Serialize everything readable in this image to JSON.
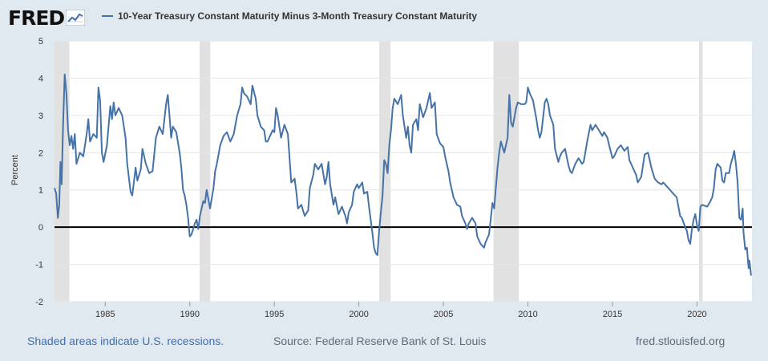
{
  "header": {
    "logo_text": "FRED",
    "logo_icon": "line-graph-icon"
  },
  "legend": {
    "label": "10-Year Treasury Constant Maturity Minus 3-Month Treasury Constant Maturity",
    "color": "#4572a7"
  },
  "footer": {
    "recession_note": "Shaded areas indicate U.S. recessions.",
    "source": "Source: Federal Reserve Bank of St. Louis",
    "site": "fred.stlouisfed.org"
  },
  "colors": {
    "background": "#e1e9f0",
    "plot_background": "#ffffff",
    "recession_shade": "#e1e1e1",
    "zero_line": "#000000",
    "series": "#4572a7",
    "grid": "#e6e6e6"
  },
  "chart_data": {
    "type": "line",
    "title": "",
    "xlabel": "",
    "ylabel": "Percent",
    "xlim": [
      1982.0,
      2023.25
    ],
    "ylim": [
      -2,
      5
    ],
    "y_ticks": [
      "-2",
      "-1",
      "0",
      "1",
      "2",
      "3",
      "4",
      "5"
    ],
    "x_ticks": [
      "1985",
      "1990",
      "1995",
      "2000",
      "2005",
      "2010",
      "2015",
      "2020"
    ],
    "grid": "horizontal",
    "reference_line": 0,
    "recessions": [
      [
        1981.58,
        1982.88
      ],
      [
        1990.58,
        1991.21
      ],
      [
        2001.21,
        2001.88
      ],
      [
        2007.96,
        2009.46
      ],
      [
        2020.12,
        2020.33
      ]
    ],
    "series": [
      {
        "name": "10-Year Treasury Constant Maturity Minus 3-Month Treasury Constant Maturity",
        "color": "#4572a7",
        "points": [
          [
            1982.0,
            1.05
          ],
          [
            1982.1,
            0.9
          ],
          [
            1982.2,
            0.25
          ],
          [
            1982.28,
            0.6
          ],
          [
            1982.35,
            1.75
          ],
          [
            1982.42,
            1.15
          ],
          [
            1982.5,
            2.6
          ],
          [
            1982.6,
            4.1
          ],
          [
            1982.7,
            3.6
          ],
          [
            1982.8,
            2.6
          ],
          [
            1982.9,
            2.2
          ],
          [
            1983.0,
            2.45
          ],
          [
            1983.1,
            2.1
          ],
          [
            1983.2,
            2.5
          ],
          [
            1983.3,
            1.7
          ],
          [
            1983.5,
            2.0
          ],
          [
            1983.7,
            1.9
          ],
          [
            1983.9,
            2.5
          ],
          [
            1984.0,
            2.9
          ],
          [
            1984.1,
            2.3
          ],
          [
            1984.3,
            2.5
          ],
          [
            1984.5,
            2.4
          ],
          [
            1984.6,
            3.75
          ],
          [
            1984.7,
            3.4
          ],
          [
            1984.8,
            2.0
          ],
          [
            1984.9,
            1.75
          ],
          [
            1985.1,
            2.2
          ],
          [
            1985.3,
            3.25
          ],
          [
            1985.4,
            2.9
          ],
          [
            1985.5,
            3.35
          ],
          [
            1985.6,
            3.0
          ],
          [
            1985.8,
            3.2
          ],
          [
            1986.0,
            3.0
          ],
          [
            1986.2,
            2.4
          ],
          [
            1986.3,
            1.7
          ],
          [
            1986.5,
            0.95
          ],
          [
            1986.6,
            0.85
          ],
          [
            1986.8,
            1.6
          ],
          [
            1986.9,
            1.25
          ],
          [
            1987.1,
            1.55
          ],
          [
            1987.2,
            2.1
          ],
          [
            1987.4,
            1.7
          ],
          [
            1987.6,
            1.45
          ],
          [
            1987.8,
            1.5
          ],
          [
            1988.0,
            2.4
          ],
          [
            1988.2,
            2.7
          ],
          [
            1988.4,
            2.5
          ],
          [
            1988.6,
            3.3
          ],
          [
            1988.7,
            3.55
          ],
          [
            1988.8,
            3.0
          ],
          [
            1988.9,
            2.4
          ],
          [
            1989.0,
            2.7
          ],
          [
            1989.2,
            2.55
          ],
          [
            1989.4,
            2.0
          ],
          [
            1989.5,
            1.6
          ],
          [
            1989.6,
            1.0
          ],
          [
            1989.7,
            0.85
          ],
          [
            1989.8,
            0.6
          ],
          [
            1989.9,
            0.25
          ],
          [
            1990.0,
            -0.25
          ],
          [
            1990.1,
            -0.2
          ],
          [
            1990.3,
            0.1
          ],
          [
            1990.4,
            0.2
          ],
          [
            1990.5,
            -0.05
          ],
          [
            1990.6,
            0.3
          ],
          [
            1990.8,
            0.7
          ],
          [
            1990.9,
            0.65
          ],
          [
            1991.0,
            1.0
          ],
          [
            1991.2,
            0.5
          ],
          [
            1991.4,
            1.05
          ],
          [
            1991.5,
            1.5
          ],
          [
            1991.6,
            1.7
          ],
          [
            1991.8,
            2.2
          ],
          [
            1992.0,
            2.45
          ],
          [
            1992.2,
            2.55
          ],
          [
            1992.4,
            2.3
          ],
          [
            1992.6,
            2.5
          ],
          [
            1992.8,
            3.0
          ],
          [
            1993.0,
            3.3
          ],
          [
            1993.1,
            3.75
          ],
          [
            1993.2,
            3.6
          ],
          [
            1993.4,
            3.5
          ],
          [
            1993.6,
            3.3
          ],
          [
            1993.7,
            3.8
          ],
          [
            1993.9,
            3.45
          ],
          [
            1994.0,
            3.0
          ],
          [
            1994.2,
            2.7
          ],
          [
            1994.4,
            2.6
          ],
          [
            1994.5,
            2.3
          ],
          [
            1994.6,
            2.3
          ],
          [
            1994.8,
            2.5
          ],
          [
            1994.9,
            2.6
          ],
          [
            1995.0,
            2.55
          ],
          [
            1995.1,
            3.2
          ],
          [
            1995.2,
            3.0
          ],
          [
            1995.4,
            2.4
          ],
          [
            1995.6,
            2.75
          ],
          [
            1995.8,
            2.5
          ],
          [
            1996.0,
            1.2
          ],
          [
            1996.2,
            1.3
          ],
          [
            1996.3,
            0.95
          ],
          [
            1996.4,
            0.5
          ],
          [
            1996.6,
            0.6
          ],
          [
            1996.8,
            0.3
          ],
          [
            1997.0,
            0.45
          ],
          [
            1997.1,
            1.05
          ],
          [
            1997.3,
            1.4
          ],
          [
            1997.4,
            1.7
          ],
          [
            1997.6,
            1.55
          ],
          [
            1997.8,
            1.7
          ],
          [
            1998.0,
            1.15
          ],
          [
            1998.1,
            1.35
          ],
          [
            1998.2,
            1.75
          ],
          [
            1998.3,
            1.15
          ],
          [
            1998.5,
            0.6
          ],
          [
            1998.6,
            0.8
          ],
          [
            1998.8,
            0.35
          ],
          [
            1999.0,
            0.55
          ],
          [
            1999.2,
            0.3
          ],
          [
            1999.3,
            0.1
          ],
          [
            1999.4,
            0.4
          ],
          [
            1999.6,
            0.6
          ],
          [
            1999.7,
            0.95
          ],
          [
            1999.9,
            1.15
          ],
          [
            2000.0,
            1.05
          ],
          [
            2000.2,
            1.2
          ],
          [
            2000.3,
            0.9
          ],
          [
            2000.5,
            0.95
          ],
          [
            2000.6,
            0.55
          ],
          [
            2000.8,
            -0.15
          ],
          [
            2000.9,
            -0.55
          ],
          [
            2001.0,
            -0.7
          ],
          [
            2001.1,
            -0.75
          ],
          [
            2001.2,
            -0.1
          ],
          [
            2001.3,
            0.4
          ],
          [
            2001.4,
            0.85
          ],
          [
            2001.5,
            1.8
          ],
          [
            2001.6,
            1.7
          ],
          [
            2001.7,
            1.45
          ],
          [
            2001.8,
            2.2
          ],
          [
            2001.9,
            2.6
          ],
          [
            2002.0,
            3.2
          ],
          [
            2002.1,
            3.45
          ],
          [
            2002.3,
            3.3
          ],
          [
            2002.5,
            3.55
          ],
          [
            2002.6,
            3.0
          ],
          [
            2002.8,
            2.4
          ],
          [
            2002.9,
            2.7
          ],
          [
            2003.0,
            2.2
          ],
          [
            2003.1,
            2.0
          ],
          [
            2003.2,
            2.75
          ],
          [
            2003.4,
            2.9
          ],
          [
            2003.5,
            2.6
          ],
          [
            2003.6,
            3.3
          ],
          [
            2003.8,
            2.95
          ],
          [
            2004.0,
            3.2
          ],
          [
            2004.2,
            3.6
          ],
          [
            2004.3,
            3.2
          ],
          [
            2004.5,
            3.35
          ],
          [
            2004.6,
            2.5
          ],
          [
            2004.8,
            2.25
          ],
          [
            2005.0,
            2.15
          ],
          [
            2005.1,
            1.9
          ],
          [
            2005.3,
            1.5
          ],
          [
            2005.4,
            1.2
          ],
          [
            2005.6,
            0.8
          ],
          [
            2005.8,
            0.6
          ],
          [
            2006.0,
            0.55
          ],
          [
            2006.1,
            0.3
          ],
          [
            2006.3,
            0.1
          ],
          [
            2006.4,
            -0.05
          ],
          [
            2006.5,
            0.1
          ],
          [
            2006.7,
            0.25
          ],
          [
            2006.9,
            0.1
          ],
          [
            2007.0,
            -0.25
          ],
          [
            2007.2,
            -0.45
          ],
          [
            2007.4,
            -0.55
          ],
          [
            2007.5,
            -0.4
          ],
          [
            2007.7,
            -0.2
          ],
          [
            2007.8,
            0.2
          ],
          [
            2007.9,
            0.65
          ],
          [
            2008.0,
            0.5
          ],
          [
            2008.2,
            1.6
          ],
          [
            2008.3,
            2.0
          ],
          [
            2008.4,
            2.3
          ],
          [
            2008.6,
            2.0
          ],
          [
            2008.7,
            2.2
          ],
          [
            2008.8,
            2.4
          ],
          [
            2008.9,
            3.55
          ],
          [
            2009.0,
            2.8
          ],
          [
            2009.1,
            2.7
          ],
          [
            2009.3,
            3.2
          ],
          [
            2009.4,
            3.35
          ],
          [
            2009.6,
            3.3
          ],
          [
            2009.8,
            3.3
          ],
          [
            2009.9,
            3.35
          ],
          [
            2010.0,
            3.75
          ],
          [
            2010.1,
            3.6
          ],
          [
            2010.3,
            3.4
          ],
          [
            2010.4,
            3.15
          ],
          [
            2010.5,
            2.9
          ],
          [
            2010.6,
            2.6
          ],
          [
            2010.7,
            2.4
          ],
          [
            2010.8,
            2.55
          ],
          [
            2011.0,
            3.35
          ],
          [
            2011.1,
            3.45
          ],
          [
            2011.2,
            3.3
          ],
          [
            2011.3,
            3.0
          ],
          [
            2011.5,
            2.75
          ],
          [
            2011.6,
            2.1
          ],
          [
            2011.8,
            1.75
          ],
          [
            2011.9,
            1.9
          ],
          [
            2012.0,
            2.0
          ],
          [
            2012.2,
            2.1
          ],
          [
            2012.4,
            1.65
          ],
          [
            2012.5,
            1.5
          ],
          [
            2012.6,
            1.45
          ],
          [
            2012.8,
            1.7
          ],
          [
            2013.0,
            1.85
          ],
          [
            2013.2,
            1.7
          ],
          [
            2013.3,
            1.75
          ],
          [
            2013.5,
            2.3
          ],
          [
            2013.7,
            2.75
          ],
          [
            2013.8,
            2.6
          ],
          [
            2014.0,
            2.75
          ],
          [
            2014.2,
            2.6
          ],
          [
            2014.4,
            2.45
          ],
          [
            2014.5,
            2.55
          ],
          [
            2014.7,
            2.4
          ],
          [
            2014.8,
            2.2
          ],
          [
            2015.0,
            1.85
          ],
          [
            2015.1,
            1.9
          ],
          [
            2015.3,
            2.1
          ],
          [
            2015.5,
            2.2
          ],
          [
            2015.7,
            2.05
          ],
          [
            2015.9,
            2.15
          ],
          [
            2016.0,
            1.8
          ],
          [
            2016.2,
            1.6
          ],
          [
            2016.4,
            1.4
          ],
          [
            2016.5,
            1.2
          ],
          [
            2016.7,
            1.35
          ],
          [
            2016.9,
            1.95
          ],
          [
            2017.1,
            2.0
          ],
          [
            2017.3,
            1.6
          ],
          [
            2017.5,
            1.3
          ],
          [
            2017.7,
            1.2
          ],
          [
            2017.9,
            1.15
          ],
          [
            2018.0,
            1.2
          ],
          [
            2018.2,
            1.1
          ],
          [
            2018.4,
            1.0
          ],
          [
            2018.6,
            0.9
          ],
          [
            2018.8,
            0.8
          ],
          [
            2019.0,
            0.3
          ],
          [
            2019.1,
            0.25
          ],
          [
            2019.3,
            0.0
          ],
          [
            2019.4,
            -0.1
          ],
          [
            2019.5,
            -0.35
          ],
          [
            2019.6,
            -0.45
          ],
          [
            2019.7,
            -0.05
          ],
          [
            2019.8,
            0.2
          ],
          [
            2019.9,
            0.35
          ],
          [
            2020.0,
            0.05
          ],
          [
            2020.1,
            -0.1
          ],
          [
            2020.2,
            0.55
          ],
          [
            2020.3,
            0.6
          ],
          [
            2020.6,
            0.55
          ],
          [
            2020.8,
            0.7
          ],
          [
            2020.9,
            0.8
          ],
          [
            2021.0,
            1.05
          ],
          [
            2021.1,
            1.55
          ],
          [
            2021.2,
            1.7
          ],
          [
            2021.4,
            1.6
          ],
          [
            2021.5,
            1.25
          ],
          [
            2021.6,
            1.2
          ],
          [
            2021.7,
            1.45
          ],
          [
            2021.9,
            1.45
          ],
          [
            2022.0,
            1.7
          ],
          [
            2022.1,
            1.85
          ],
          [
            2022.2,
            2.05
          ],
          [
            2022.3,
            1.7
          ],
          [
            2022.4,
            1.2
          ],
          [
            2022.5,
            0.25
          ],
          [
            2022.6,
            0.2
          ],
          [
            2022.7,
            0.5
          ],
          [
            2022.75,
            -0.15
          ],
          [
            2022.85,
            -0.6
          ],
          [
            2022.95,
            -0.55
          ],
          [
            2023.05,
            -1.1
          ],
          [
            2023.1,
            -0.9
          ],
          [
            2023.2,
            -1.3
          ]
        ]
      }
    ]
  }
}
